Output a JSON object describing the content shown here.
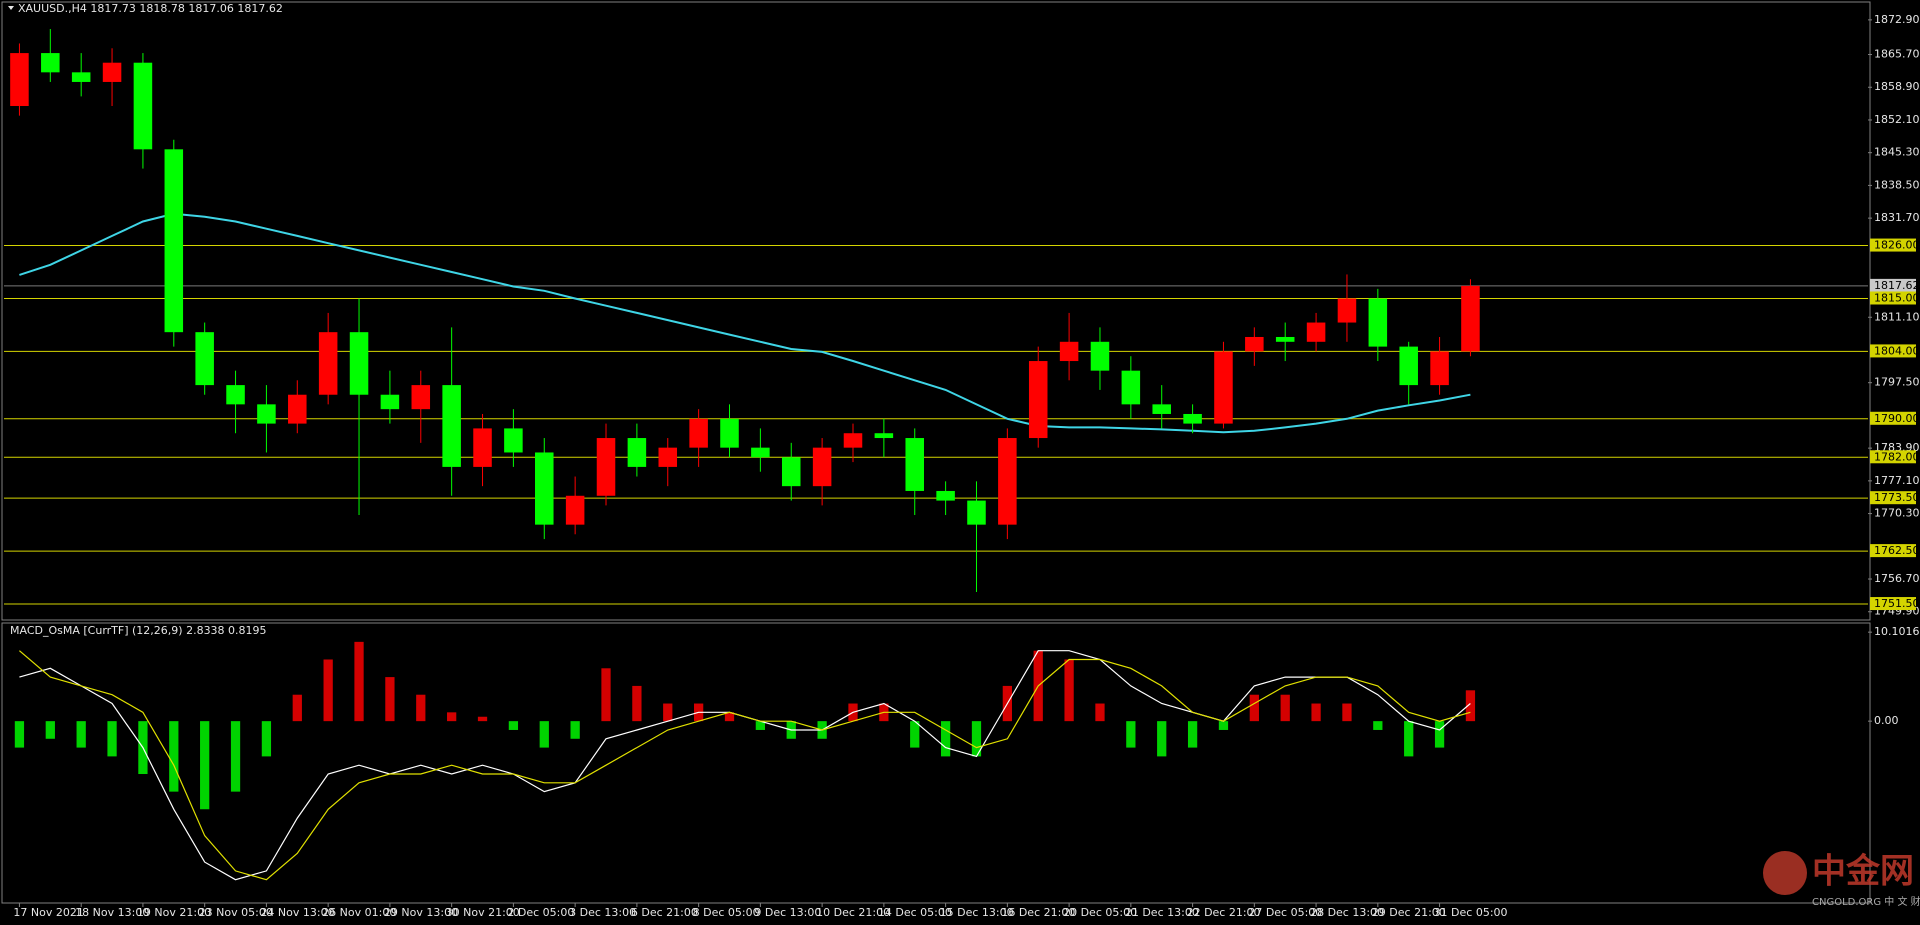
{
  "chart_data": [
    {
      "type": "candlestick",
      "title": "XAUUSD.,H4 1817.73 1818.78 1817.06 1817.62",
      "categories": [
        "17 Nov 2021",
        null,
        "18 Nov 13:00",
        null,
        "19 Nov 21:00",
        null,
        "23 Nov 05:00",
        null,
        "24 Nov 13:00",
        null,
        "26 Nov 01:00",
        null,
        "29 Nov 13:00",
        null,
        "30 Nov 21:00",
        null,
        "2 Dec 05:00",
        null,
        "3 Dec 13:00",
        null,
        "6 Dec 21:00",
        null,
        "8 Dec 05:00",
        null,
        "9 Dec 13:00",
        null,
        "10 Dec 21:00",
        null,
        "14 Dec 05:00",
        null,
        "15 Dec 13:00",
        null,
        "16 Dec 21:00",
        null,
        "20 Dec 05:00",
        null,
        "21 Dec 13:00",
        null,
        "22 Dec 21:00",
        null,
        "27 Dec 05:00",
        null,
        "28 Dec 13:00",
        null,
        "29 Dec 21:00",
        null,
        "31 Dec 05:00",
        null
      ],
      "open": [
        1855,
        1866,
        1862,
        1860,
        1864,
        1846,
        1808,
        1797,
        1793,
        1789,
        1795,
        1808,
        1795,
        1792,
        1797,
        1780,
        1788,
        1783,
        1768,
        1774,
        1786,
        1780,
        1784,
        1790,
        1784,
        1782,
        1776,
        1784,
        1787,
        1786,
        1775,
        1773,
        1768,
        1786,
        1802,
        1806,
        1800,
        1793,
        1791,
        1789,
        1804,
        1807,
        1806,
        1810,
        1815,
        1805,
        1797,
        1804
      ],
      "high": [
        1868,
        1871,
        1866,
        1867,
        1866,
        1848,
        1810,
        1800,
        1797,
        1798,
        1812,
        1815,
        1800,
        1800,
        1809,
        1791,
        1792,
        1786,
        1778,
        1789,
        1789,
        1786,
        1792,
        1793,
        1788,
        1785,
        1786,
        1789,
        1790,
        1788,
        1777,
        1777,
        1788,
        1805,
        1812,
        1809,
        1803,
        1797,
        1793,
        1806,
        1809,
        1810,
        1812,
        1820,
        1817,
        1806,
        1807,
        1819
      ],
      "low": [
        1853,
        1860,
        1857,
        1855,
        1842,
        1805,
        1795,
        1787,
        1783,
        1787,
        1793,
        1770,
        1789,
        1785,
        1774,
        1776,
        1780,
        1765,
        1766,
        1772,
        1778,
        1776,
        1780,
        1782,
        1779,
        1773,
        1772,
        1781,
        1782,
        1770,
        1770,
        1754,
        1765,
        1784,
        1798,
        1796,
        1790,
        1788,
        1787,
        1788,
        1801,
        1802,
        1804,
        1806,
        1802,
        1793,
        1795,
        1803
      ],
      "close": [
        1866,
        1862,
        1860,
        1864,
        1846,
        1808,
        1797,
        1793,
        1789,
        1795,
        1808,
        1795,
        1792,
        1797,
        1780,
        1788,
        1783,
        1768,
        1774,
        1786,
        1780,
        1784,
        1790,
        1784,
        1782,
        1776,
        1784,
        1787,
        1786,
        1775,
        1773,
        1768,
        1786,
        1802,
        1806,
        1800,
        1793,
        1791,
        1789,
        1804,
        1807,
        1806,
        1810,
        1815,
        1805,
        1797,
        1804,
        1817.62
      ],
      "up_color": "#ff0000",
      "down_color": "#00ff00",
      "ma": {
        "color": "#3fd5e6",
        "values": [
          1819.9,
          1822,
          1825,
          1828,
          1831,
          1832.6,
          1832,
          1831,
          1829.5,
          1828,
          1826.5,
          1825,
          1823.5,
          1822,
          1820.5,
          1819,
          1817.5,
          1816.6,
          1815,
          1813.5,
          1812,
          1810.5,
          1809,
          1807.5,
          1806,
          1804.5,
          1803.9,
          1802,
          1800,
          1798,
          1796,
          1793,
          1790,
          1788.5,
          1788.2,
          1788.2,
          1788,
          1787.8,
          1787.5,
          1787.2,
          1787.5,
          1788.2,
          1789,
          1790,
          1791.7,
          1792.8,
          1793.8,
          1795
        ]
      },
      "ylim": [
        1748.6,
        1876.2
      ],
      "yticks": [
        {
          "value": 1872.9,
          "label": "1872.90"
        },
        {
          "value": 1865.7,
          "label": "1865.70"
        },
        {
          "value": 1858.9,
          "label": "1858.90"
        },
        {
          "value": 1852.1,
          "label": "1852.10"
        },
        {
          "value": 1845.3,
          "label": "1845.30"
        },
        {
          "value": 1838.5,
          "label": "1838.50"
        },
        {
          "value": 1831.7,
          "label": "1831.70"
        },
        {
          "value": 1811.1,
          "label": "1811.10"
        },
        {
          "value": 1797.5,
          "label": "1797.50"
        },
        {
          "value": 1783.9,
          "label": "1783.90"
        },
        {
          "value": 1777.1,
          "label": "1777.10"
        },
        {
          "value": 1770.3,
          "label": "1770.30"
        },
        {
          "value": 1756.7,
          "label": "1756.70"
        },
        {
          "value": 1749.9,
          "label": "1749.90"
        }
      ],
      "levels": [
        {
          "value": 1826,
          "label": "1826.00"
        },
        {
          "value": 1815,
          "label": "1815.00"
        },
        {
          "value": 1804,
          "label": "1804.00"
        },
        {
          "value": 1790,
          "label": "1790.00"
        },
        {
          "value": 1782,
          "label": "1782.00"
        },
        {
          "value": 1773.5,
          "label": "1773.50"
        },
        {
          "value": 1762.5,
          "label": "1762.50"
        },
        {
          "value": 1751.5,
          "label": "1751.50"
        }
      ],
      "level_color": "#d4d400",
      "last_price": {
        "value": 1817.62,
        "label": "1817.62"
      }
    },
    {
      "type": "macd",
      "title": "MACD_OsMA [CurrTF] (12,26,9) 2.8338 0.8195",
      "values": [
        -3,
        -2,
        -3,
        -4,
        -6,
        -8,
        -10,
        -8,
        -4,
        3,
        7,
        9,
        5,
        3,
        1,
        0.5,
        -1,
        -3,
        -2,
        6,
        4,
        2,
        2,
        1,
        -1,
        -2,
        -2,
        2,
        2,
        -3,
        -4,
        -4,
        4,
        8,
        7,
        2,
        -3,
        -4,
        -3,
        -1,
        3,
        3,
        2,
        2,
        -1,
        -4,
        -3,
        3.5
      ],
      "positive_color": "#d40000",
      "negative_color": "#00d400",
      "series": [
        {
          "color": "#ffffff",
          "values": [
            5,
            6,
            4,
            2,
            -3,
            -10,
            -16,
            -18,
            -17,
            -11,
            -6,
            -5,
            -6,
            -5,
            -6,
            -5,
            -6,
            -8,
            -7,
            -2,
            -1,
            0,
            1,
            1,
            0,
            -1,
            -1,
            1,
            2,
            0,
            -3,
            -4,
            2,
            8,
            8,
            7,
            4,
            2,
            1,
            0,
            4,
            5,
            5,
            5,
            3,
            0,
            -1,
            2
          ]
        },
        {
          "color": "#e0e000",
          "values": [
            8,
            5,
            4,
            3,
            1,
            -5,
            -13,
            -17,
            -18,
            -15,
            -10,
            -7,
            -6,
            -6,
            -5,
            -6,
            -6,
            -7,
            -7,
            -5,
            -3,
            -1,
            0,
            1,
            0,
            0,
            -1,
            0,
            1,
            1,
            -1,
            -3,
            -2,
            4,
            7,
            7,
            6,
            4,
            1,
            0,
            2,
            4,
            5,
            5,
            4,
            1,
            0,
            1
          ]
        }
      ],
      "ylim": [
        -20.3,
        10.8
      ],
      "yticks": [
        10.1016,
        {
          "value": 0,
          "label": "0.00"
        }
      ]
    }
  ],
  "watermark": {
    "title": "中金网",
    "subtitle": "CNGOLD.ORG 中 文 财 经 新 媒 体"
  }
}
